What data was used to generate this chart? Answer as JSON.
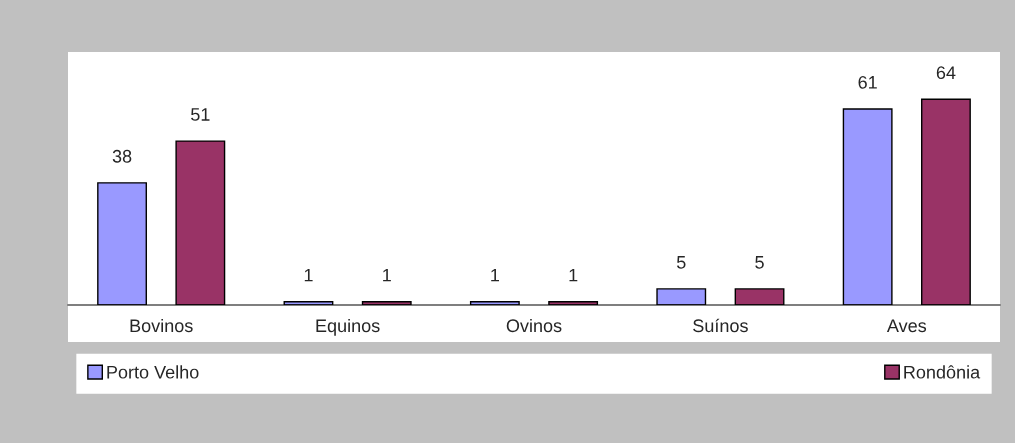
{
  "chart_data": {
    "type": "bar",
    "categories": [
      "Bovinos",
      "Equinos",
      "Ovinos",
      "Suínos",
      "Aves"
    ],
    "series": [
      {
        "name": "Porto Velho",
        "color": "#9999ff",
        "values": [
          38,
          1,
          1,
          5,
          61
        ]
      },
      {
        "name": "Rondônia",
        "color": "#993366",
        "values": [
          51,
          1,
          1,
          5,
          64
        ]
      }
    ],
    "data_labels": true,
    "legend": "bottom",
    "grid": false
  }
}
